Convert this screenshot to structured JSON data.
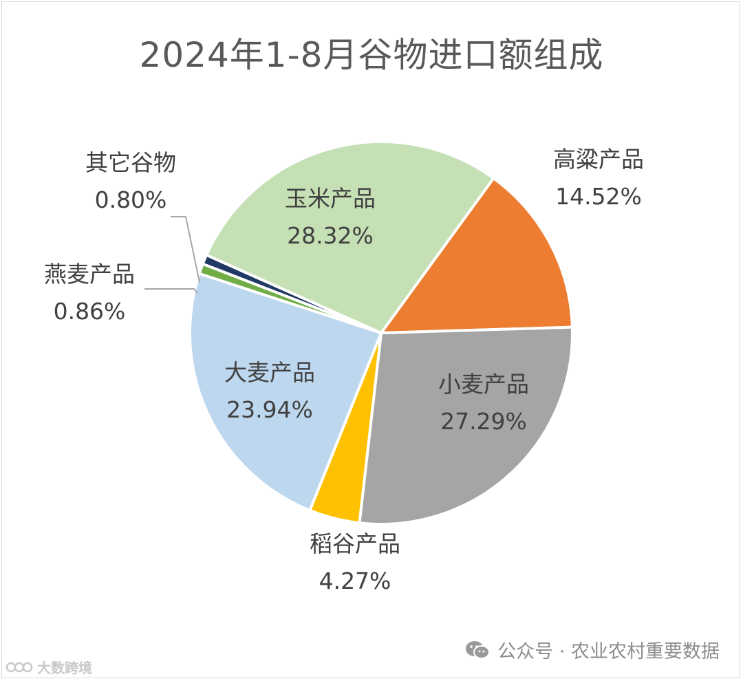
{
  "chart_data": {
    "type": "pie",
    "title": "2024年1-8月谷物进口额组成",
    "slices": [
      {
        "label": "高粱产品",
        "value": 14.52,
        "pct_text": "14.52%",
        "color": "#ED7D31"
      },
      {
        "label": "小麦产品",
        "value": 27.29,
        "pct_text": "27.29%",
        "color": "#A5A5A5"
      },
      {
        "label": "稻谷产品",
        "value": 4.27,
        "pct_text": "4.27%",
        "color": "#FFC000"
      },
      {
        "label": "大麦产品",
        "value": 23.94,
        "pct_text": "23.94%",
        "color": "#BDD7EE"
      },
      {
        "label": "燕麦产品",
        "value": 0.86,
        "pct_text": "0.86%",
        "color": "#70AD47"
      },
      {
        "label": "其它谷物",
        "value": 0.8,
        "pct_text": "0.80%",
        "color": "#1F3864"
      },
      {
        "label": "玉米产品",
        "value": 28.32,
        "pct_text": "28.32%",
        "color": "#C5E0B4"
      }
    ]
  },
  "watermark": {
    "text": "公众号 · 农业农村重要数据",
    "icon": "wechat-icon"
  },
  "corner_mark": {
    "text": "大数跨境"
  }
}
